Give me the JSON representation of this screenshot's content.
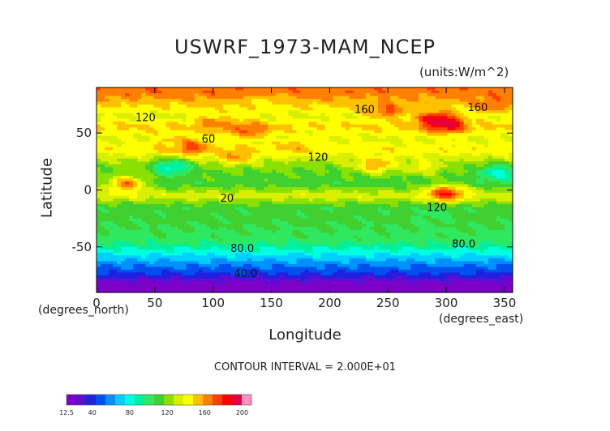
{
  "chart_data": {
    "type": "heatmap",
    "title": "USWRF_1973-MAM_NCEP",
    "units": "(units:W/m^2)",
    "xlabel": "Longitude",
    "ylabel": "Latitude",
    "x_unit_note": "(degrees_north)",
    "x_unit_note_2": "(degrees_east)",
    "xlim": [
      0,
      357
    ],
    "ylim": [
      -90,
      90
    ],
    "x_ticks": [
      0,
      50,
      100,
      150,
      200,
      250,
      300,
      350
    ],
    "y_ticks": [
      -50,
      0,
      50
    ],
    "contour_interval_text": "CONTOUR INTERVAL = 2.000E+01",
    "contour_labels": [
      {
        "text": "120",
        "lon": 42,
        "lat": 63
      },
      {
        "text": "160",
        "lon": 230,
        "lat": 70
      },
      {
        "text": "160",
        "lon": 327,
        "lat": 72
      },
      {
        "text": "60",
        "lon": 96,
        "lat": 44
      },
      {
        "text": "120",
        "lon": 190,
        "lat": 28
      },
      {
        "text": "20",
        "lon": 112,
        "lat": -8
      },
      {
        "text": "120",
        "lon": 292,
        "lat": -16
      },
      {
        "text": "80.0",
        "lon": 125,
        "lat": -52
      },
      {
        "text": "80.0",
        "lon": 315,
        "lat": -48
      },
      {
        "text": "40.0",
        "lon": 128,
        "lat": -74
      }
    ],
    "colorbar": {
      "tick_labels": [
        "12.5",
        "40",
        "80",
        "120",
        "160",
        "200"
      ],
      "tick_values": [
        12.5,
        40,
        80,
        120,
        160,
        200
      ],
      "range": [
        12.5,
        210
      ],
      "colors": [
        "#7d00c8",
        "#5a0fd2",
        "#2020e0",
        "#0050f0",
        "#0090ff",
        "#00d0ff",
        "#00ffe0",
        "#00f0a0",
        "#30e860",
        "#40d030",
        "#8ae000",
        "#d8f000",
        "#ffff00",
        "#ffc000",
        "#ff8000",
        "#ff4000",
        "#ff0000",
        "#e00040",
        "#ff90c0"
      ]
    },
    "field_rows": [
      {
        "lat": 85,
        "value": 165
      },
      {
        "lat": 75,
        "value": 150
      },
      {
        "lat": 65,
        "value": 135
      },
      {
        "lat": 55,
        "value": 150
      },
      {
        "lat": 45,
        "value": 135
      },
      {
        "lat": 35,
        "value": 145
      },
      {
        "lat": 25,
        "value": 125
      },
      {
        "lat": 15,
        "value": 115
      },
      {
        "lat": 5,
        "value": 110
      },
      {
        "lat": -5,
        "value": 135
      },
      {
        "lat": -15,
        "value": 110
      },
      {
        "lat": -25,
        "value": 110
      },
      {
        "lat": -35,
        "value": 105
      },
      {
        "lat": -45,
        "value": 100
      },
      {
        "lat": -52,
        "value": 85
      },
      {
        "lat": -58,
        "value": 72
      },
      {
        "lat": -63,
        "value": 62
      },
      {
        "lat": -68,
        "value": 52
      },
      {
        "lat": -73,
        "value": 45
      },
      {
        "lat": -78,
        "value": 30
      },
      {
        "lat": -84,
        "value": 14
      }
    ],
    "field_blobs": [
      {
        "lon": 145,
        "lat": 76,
        "value": 145
      },
      {
        "lon": 230,
        "lat": 72,
        "value": 150
      },
      {
        "lon": 290,
        "lat": 62,
        "value": 185
      },
      {
        "lon": 300,
        "lat": 58,
        "value": 195
      },
      {
        "lon": 250,
        "lat": 70,
        "value": 170
      },
      {
        "lon": 340,
        "lat": 75,
        "value": 170
      },
      {
        "lon": 102,
        "lat": 58,
        "value": 165
      },
      {
        "lon": 130,
        "lat": 53,
        "value": 170
      },
      {
        "lon": 80,
        "lat": 38,
        "value": 180
      },
      {
        "lon": 62,
        "lat": 42,
        "value": 150
      },
      {
        "lon": 65,
        "lat": 20,
        "value": 80
      },
      {
        "lon": 120,
        "lat": 30,
        "value": 160
      },
      {
        "lon": 170,
        "lat": 38,
        "value": 155
      },
      {
        "lon": 190,
        "lat": 48,
        "value": 140
      },
      {
        "lon": 240,
        "lat": 22,
        "value": 160
      },
      {
        "lon": 280,
        "lat": 20,
        "value": 140
      },
      {
        "lon": 300,
        "lat": -3,
        "value": 180
      },
      {
        "lon": 25,
        "lat": 5,
        "value": 165
      },
      {
        "lon": 345,
        "lat": 15,
        "value": 80
      },
      {
        "lon": 290,
        "lat": -22,
        "value": 100
      }
    ]
  }
}
